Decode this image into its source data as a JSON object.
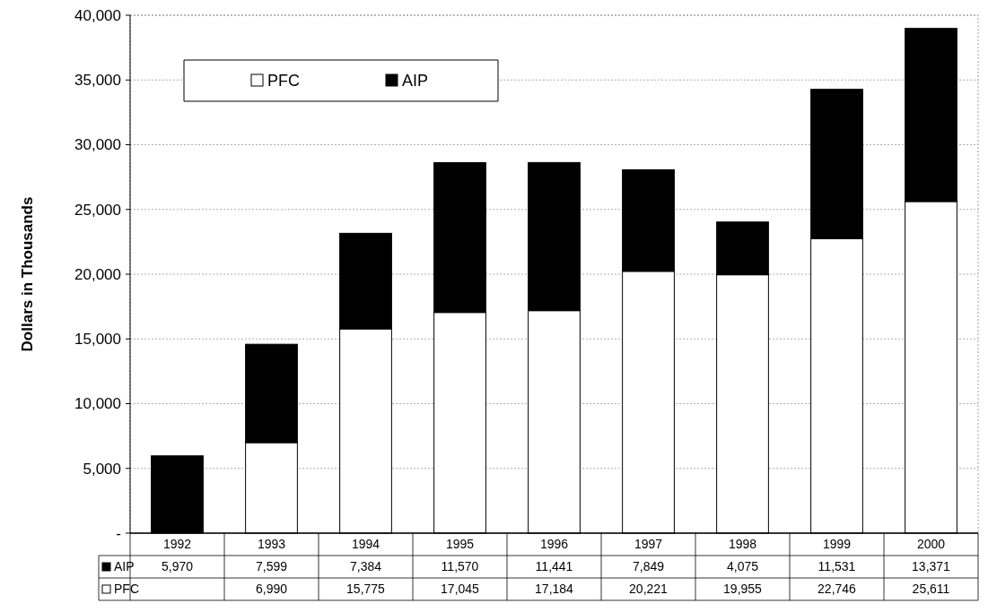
{
  "chart_data": {
    "type": "bar",
    "stacked": true,
    "ylabel": "Dollars in Thousands",
    "categories": [
      "1992",
      "1993",
      "1994",
      "1995",
      "1996",
      "1997",
      "1998",
      "1999",
      "2000"
    ],
    "series": [
      {
        "name": "PFC",
        "color": "#ffffff",
        "values": [
          null,
          6990,
          15775,
          17045,
          17184,
          20221,
          19955,
          22746,
          25611
        ],
        "value_labels": [
          null,
          "6,990",
          "15,775",
          "17,045",
          "17,184",
          "20,221",
          "19,955",
          "22,746",
          "25,611"
        ]
      },
      {
        "name": "AIP",
        "color": "#000000",
        "values": [
          5970,
          7599,
          7384,
          11570,
          11441,
          7849,
          4075,
          11531,
          13371
        ],
        "value_labels": [
          "5,970",
          "7,599",
          "7,384",
          "11,570",
          "11,441",
          "7,849",
          "4,075",
          "11,531",
          "13,371"
        ]
      }
    ],
    "ylim": [
      0,
      40000
    ],
    "yticks": [
      {
        "value": 0,
        "label": "-"
      },
      {
        "value": 5000,
        "label": "5,000"
      },
      {
        "value": 10000,
        "label": "10,000"
      },
      {
        "value": 15000,
        "label": "15,000"
      },
      {
        "value": 20000,
        "label": "20,000"
      },
      {
        "value": 25000,
        "label": "25,000"
      },
      {
        "value": 30000,
        "label": "30,000"
      },
      {
        "value": 35000,
        "label": "35,000"
      },
      {
        "value": 40000,
        "label": "40,000"
      }
    ],
    "grid": "y",
    "legend": "top left"
  }
}
